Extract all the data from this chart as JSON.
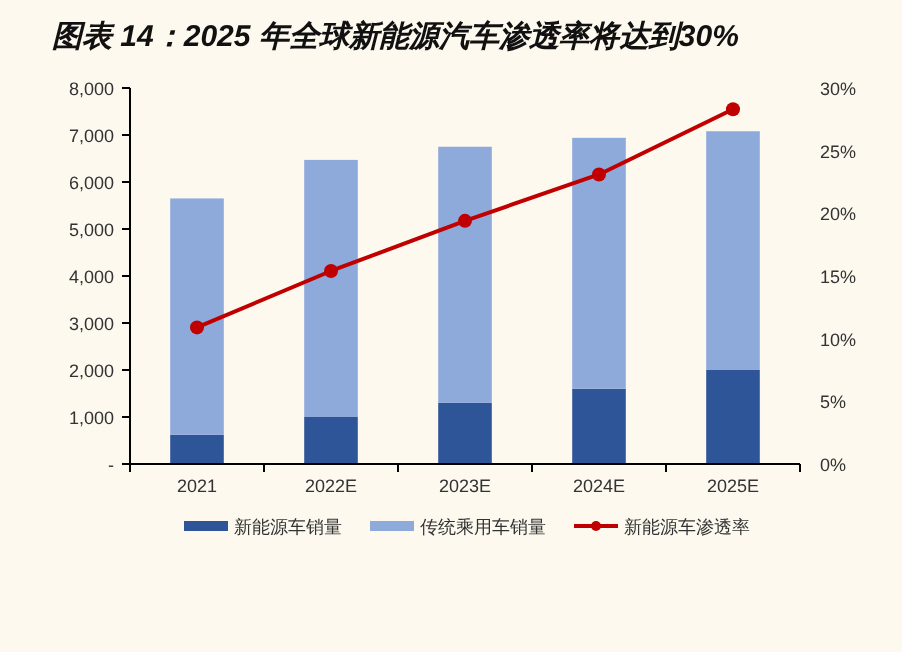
{
  "chart_data": {
    "type": "bar",
    "title": "图表 14：2025 年全球新能源汽车渗透率将达到30%",
    "categories": [
      "2021",
      "2022E",
      "2023E",
      "2024E",
      "2025E"
    ],
    "stacked": true,
    "series": [
      {
        "name": "新能源车销量",
        "color": "#2e5597",
        "values": [
          620,
          1000,
          1300,
          1600,
          2000
        ]
      },
      {
        "name": "传统乘用车销量",
        "color": "#8eaadb",
        "values": [
          5030,
          5470,
          5450,
          5340,
          5080
        ]
      },
      {
        "name": "新能源车渗透率",
        "type": "line",
        "axis": "y2",
        "color": "#c00000",
        "values": [
          10.9,
          15.4,
          19.4,
          23.1,
          28.3
        ]
      }
    ],
    "ylim": [
      0,
      8000
    ],
    "yticks": [
      {
        "value": 0,
        "label": "-"
      },
      {
        "value": 1000,
        "label": "1,000"
      },
      {
        "value": 2000,
        "label": "2,000"
      },
      {
        "value": 3000,
        "label": "3,000"
      },
      {
        "value": 4000,
        "label": "4,000"
      },
      {
        "value": 5000,
        "label": "5,000"
      },
      {
        "value": 6000,
        "label": "6,000"
      },
      {
        "value": 7000,
        "label": "7,000"
      },
      {
        "value": 8000,
        "label": "8,000"
      }
    ],
    "y2lim": [
      0,
      30
    ],
    "y2ticks": [
      {
        "value": 0,
        "label": "0%"
      },
      {
        "value": 5,
        "label": "5%"
      },
      {
        "value": 10,
        "label": "10%"
      },
      {
        "value": 15,
        "label": "15%"
      },
      {
        "value": 20,
        "label": "20%"
      },
      {
        "value": 25,
        "label": "25%"
      },
      {
        "value": 30,
        "label": "30%"
      }
    ],
    "marker": "circle",
    "line_style": "solid",
    "legend": "bottom",
    "grid": false
  }
}
